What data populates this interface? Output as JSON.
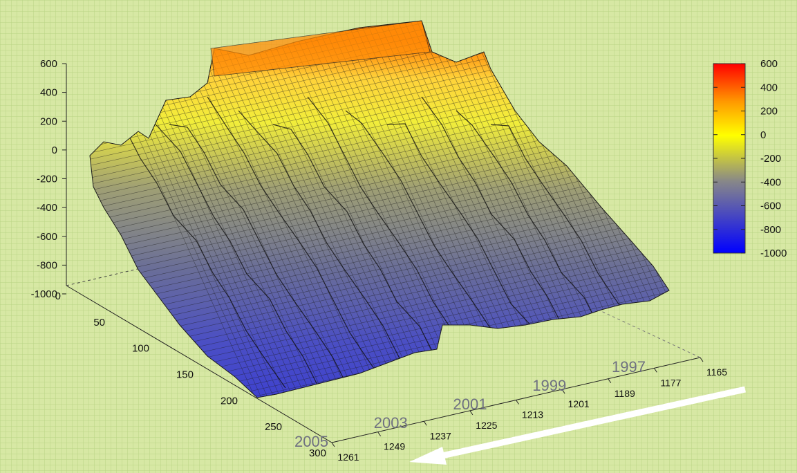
{
  "chart_data": {
    "type": "surface3d",
    "title": "",
    "z_axis": {
      "label": "",
      "ticks": [
        "600",
        "400",
        "200",
        "0",
        "-200",
        "-400",
        "-600",
        "-800",
        "-1000"
      ],
      "range": [
        -1000,
        600
      ]
    },
    "y_axis": {
      "label": "",
      "ticks": [
        "0",
        "50",
        "100",
        "150",
        "200",
        "250",
        "300"
      ],
      "range": [
        0,
        300
      ]
    },
    "x_axis": {
      "label": "",
      "ticks": [
        "1261",
        "1249",
        "1237",
        "1225",
        "1213",
        "1201",
        "1189",
        "1177",
        "1165"
      ],
      "year_labels": [
        "2005",
        "2003",
        "2001",
        "1999",
        "1997"
      ]
    },
    "colorbar": {
      "ticks": [
        "600",
        "400",
        "200",
        "0",
        "-200",
        "-400",
        "-600",
        "-800",
        "-1000"
      ],
      "range": [
        -1000,
        600
      ],
      "colors": [
        "#ff0000",
        "#ff9900",
        "#ffff00",
        "#888888",
        "#0000ff"
      ]
    },
    "surface_summary": {
      "front_left_ridge_max_z": 0,
      "back_plateau_max_z": 600,
      "right_end_min_z": -800,
      "front_bottom_z": -1000
    },
    "background_color": "#d7e8a4",
    "grid_color": "#b8d27e"
  }
}
